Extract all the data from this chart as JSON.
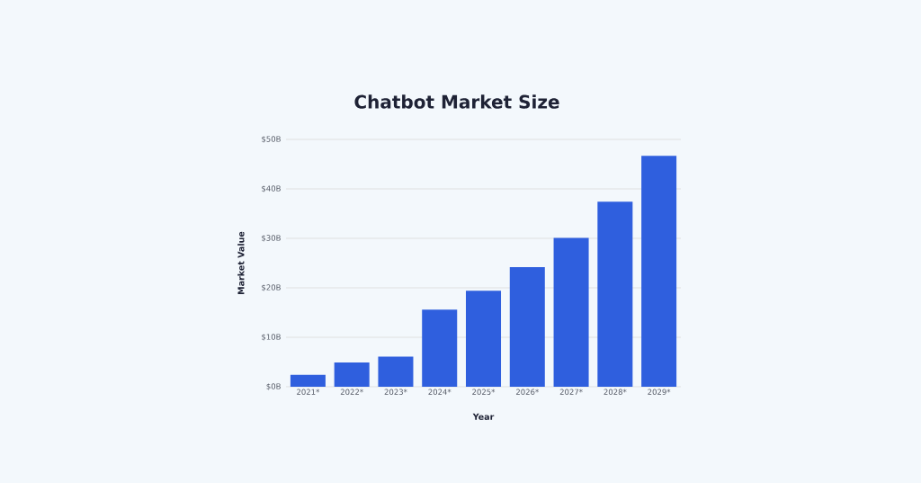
{
  "chart_data": {
    "type": "bar",
    "title": "Chatbot Market Size",
    "xlabel": "Year",
    "ylabel": "Market Value",
    "categories": [
      "2021*",
      "2022*",
      "2023*",
      "2024*",
      "2025*",
      "2026*",
      "2027*",
      "2028*",
      "2029*"
    ],
    "values": [
      2.4,
      4.9,
      6.1,
      15.6,
      19.4,
      24.2,
      30.1,
      37.4,
      46.7
    ],
    "color": "#2f5fde",
    "ylim": [
      0,
      50
    ],
    "yticks": [
      {
        "value": 0,
        "label": "$0B"
      },
      {
        "value": 10,
        "label": "$10B"
      },
      {
        "value": 20,
        "label": "$20B"
      },
      {
        "value": 30,
        "label": "$30B"
      },
      {
        "value": 40,
        "label": "$40B"
      },
      {
        "value": 50,
        "label": "$50B"
      }
    ],
    "grid": "y"
  }
}
